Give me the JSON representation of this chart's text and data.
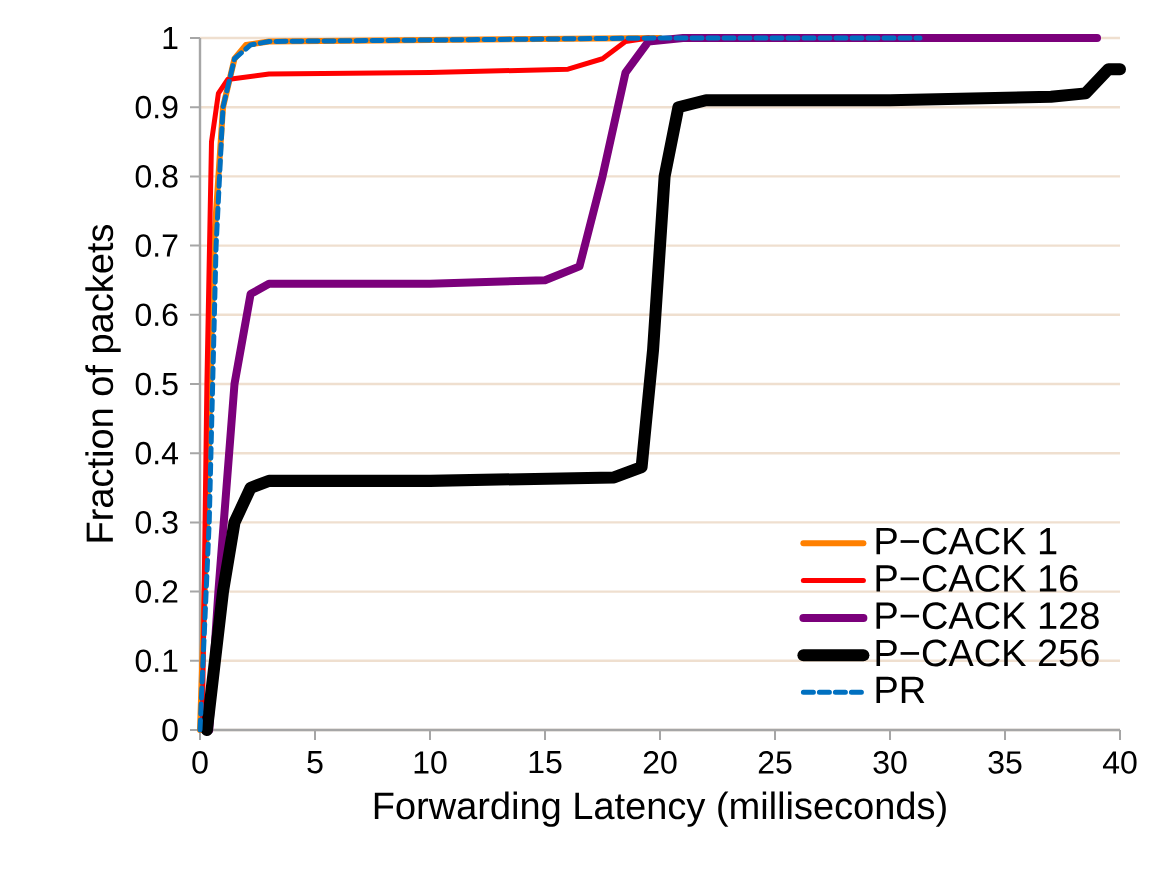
{
  "chart_data": {
    "type": "line",
    "xlabel": "Forwarding Latency (milliseconds)",
    "ylabel": "Fraction of packets",
    "xlim": [
      0,
      40
    ],
    "ylim": [
      0,
      1
    ],
    "xticks": [
      0,
      5,
      10,
      15,
      20,
      25,
      30,
      35,
      40
    ],
    "yticks": [
      0,
      0.1,
      0.2,
      0.3,
      0.4,
      0.5,
      0.6,
      0.7,
      0.8,
      0.9,
      1
    ],
    "grid": "y",
    "legend": "bottom right",
    "series": [
      {
        "name": "P−CACK 1",
        "color": "#ff8000",
        "line_style": "solid",
        "x": [
          0,
          0.3,
          0.6,
          1,
          1.5,
          2,
          3,
          10,
          20
        ],
        "values": [
          0,
          0.3,
          0.7,
          0.9,
          0.97,
          0.99,
          0.995,
          0.997,
          1
        ]
      },
      {
        "name": "P−CACK 16",
        "color": "#ff0000",
        "line_style": "solid",
        "x": [
          0.1,
          0.3,
          0.5,
          0.8,
          1.2,
          3,
          10,
          16,
          17.5,
          18.5,
          19.5
        ],
        "values": [
          0,
          0.5,
          0.85,
          0.92,
          0.94,
          0.948,
          0.95,
          0.955,
          0.97,
          0.995,
          1
        ]
      },
      {
        "name": "P−CACK 128",
        "color": "#7b007b",
        "line_style": "solid",
        "x": [
          0.4,
          0.8,
          1.5,
          2.2,
          3,
          10,
          15,
          16.5,
          17.5,
          18.5,
          19.5,
          21,
          39
        ],
        "values": [
          0,
          0.2,
          0.5,
          0.63,
          0.645,
          0.645,
          0.65,
          0.67,
          0.8,
          0.95,
          0.995,
          1,
          1
        ]
      },
      {
        "name": "P−CACK 256",
        "color": "#000000",
        "line_style": "solid",
        "x": [
          0.3,
          1,
          1.5,
          2.2,
          3,
          10,
          18,
          19.2,
          19.7,
          20.2,
          20.8,
          22,
          30,
          37,
          38.5,
          39.5,
          40
        ],
        "values": [
          0,
          0.2,
          0.3,
          0.35,
          0.36,
          0.36,
          0.365,
          0.38,
          0.55,
          0.8,
          0.9,
          0.91,
          0.91,
          0.915,
          0.92,
          0.955,
          0.955
        ]
      },
      {
        "name": "PR",
        "color": "#0070c0",
        "line_style": "dashed",
        "x": [
          0,
          0.4,
          0.7,
          1,
          1.5,
          2.2,
          3,
          20,
          31.3
        ],
        "values": [
          0,
          0.3,
          0.7,
          0.9,
          0.97,
          0.99,
          0.995,
          1,
          1
        ]
      }
    ]
  }
}
